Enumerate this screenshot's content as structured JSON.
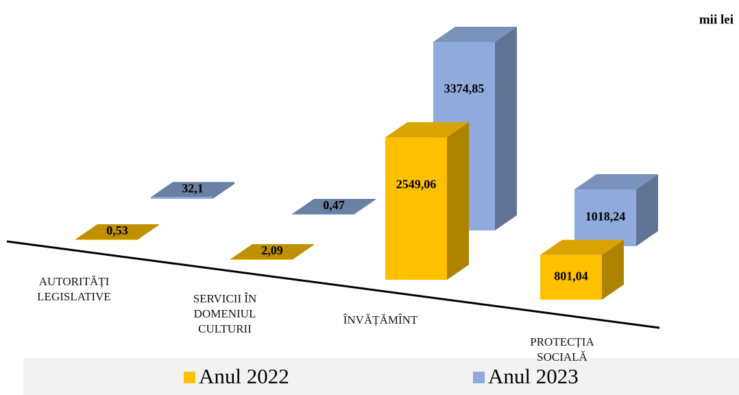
{
  "chart_data": {
    "type": "bar3d",
    "unit": "mii lei",
    "categories": [
      "AUTORITĂȚI LEGISLATIVE",
      "SERVICII ÎN DOMENIUL CULTURII",
      "ÎNVĂȚĂMÎNT",
      "PROTECȚIA SOCIALĂ"
    ],
    "series": [
      {
        "name": "Anul 2022",
        "color": "#FFC000",
        "values": [
          0.53,
          2.09,
          2549.06,
          801.04
        ],
        "value_labels": [
          "0,53",
          "2,09",
          "2549,06",
          "801,04"
        ]
      },
      {
        "name": "Anul 2023",
        "color": "#8FAADC",
        "values": [
          32.1,
          0.47,
          3374.85,
          1018.24
        ],
        "value_labels": [
          "32,1",
          "0,47",
          "3374,85",
          "1018,24"
        ]
      }
    ],
    "legend": "bottom"
  }
}
